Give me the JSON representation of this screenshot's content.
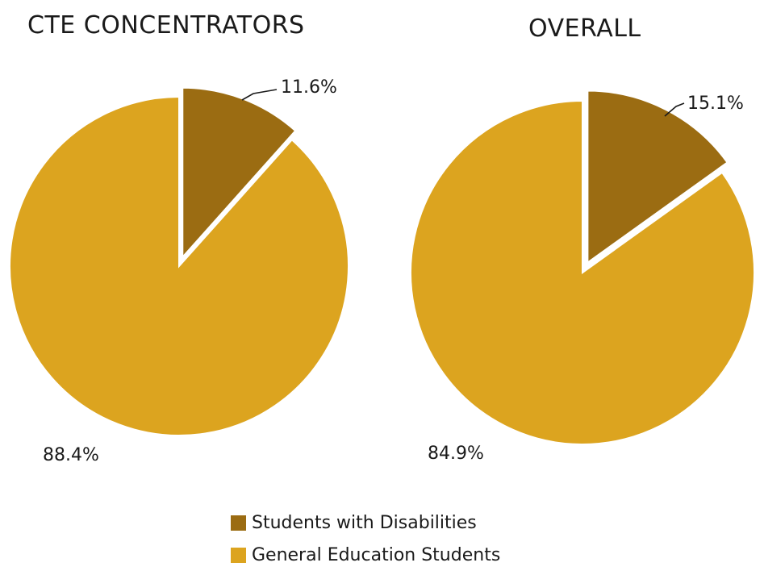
{
  "chart_data": [
    {
      "type": "pie",
      "title": "CTE CONCENTRATORS",
      "slices": [
        {
          "name": "Students with Disabilities",
          "value": 11.6,
          "label": "11.6%",
          "color": "#9B6C12",
          "exploded": true
        },
        {
          "name": "General Education Students",
          "value": 88.4,
          "label": "88.4%",
          "color": "#DCA41F",
          "exploded": false
        }
      ]
    },
    {
      "type": "pie",
      "title": "OVERALL",
      "slices": [
        {
          "name": "Students with Disabilities",
          "value": 15.1,
          "label": "15.1%",
          "color": "#9B6C12",
          "exploded": true
        },
        {
          "name": "General Education Students",
          "value": 84.9,
          "label": "84.9%",
          "color": "#DCA41F",
          "exploded": false
        }
      ]
    }
  ],
  "legend": {
    "placement": "bottom-center",
    "items": [
      {
        "label": "Students with Disabilities",
        "color": "#9B6C12"
      },
      {
        "label": "General Education Students",
        "color": "#DCA41F"
      }
    ]
  }
}
